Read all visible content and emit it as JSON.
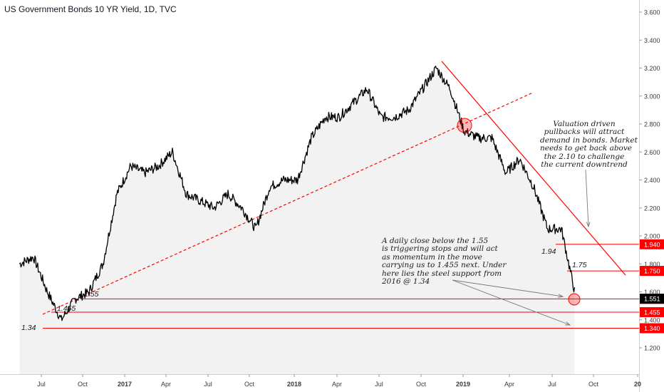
{
  "chart_data": {
    "type": "line",
    "title": "US Government Bonds 10 YR Yield, 1D, TVC",
    "colors": {
      "line": "#000000",
      "trend": "#ff0000",
      "label_bg": "#ff0000",
      "current_bg": "#000000",
      "area": "#f2f2f2"
    },
    "x_ticks": [
      "Jul",
      "Oct",
      "2017",
      "Apr",
      "Jul",
      "Oct",
      "2018",
      "Apr",
      "Jul",
      "Oct",
      "2019",
      "Apr",
      "Jul",
      "Oct",
      "20"
    ],
    "y_ticks": [
      "1.200",
      "1.400",
      "1.600",
      "1.800",
      "2.000",
      "2.200",
      "2.400",
      "2.600",
      "2.800",
      "3.000",
      "3.200",
      "3.400",
      "3.600"
    ],
    "ylim": [
      1.1,
      3.7
    ],
    "grid": false,
    "series": [
      {
        "name": "",
        "x": [
          "2016-04",
          "2016-05",
          "2016-06",
          "2016-07",
          "2016-08",
          "2016-09",
          "2016-10",
          "2016-11",
          "2016-12",
          "2017-01",
          "2017-02",
          "2017-03",
          "2017-04",
          "2017-05",
          "2017-06",
          "2017-07",
          "2017-08",
          "2017-09",
          "2017-10",
          "2017-11",
          "2017-12",
          "2018-01",
          "2018-02",
          "2018-03",
          "2018-04",
          "2018-05",
          "2018-06",
          "2018-07",
          "2018-08",
          "2018-09",
          "2018-10",
          "2018-11",
          "2018-12",
          "2019-01",
          "2019-02",
          "2019-03",
          "2019-04",
          "2019-05",
          "2019-06",
          "2019-07",
          "2019-08"
        ],
        "values": [
          1.8,
          1.85,
          1.6,
          1.4,
          1.55,
          1.6,
          1.8,
          2.3,
          2.5,
          2.45,
          2.5,
          2.6,
          2.3,
          2.25,
          2.2,
          2.3,
          2.2,
          2.05,
          2.35,
          2.4,
          2.4,
          2.7,
          2.85,
          2.85,
          2.95,
          3.05,
          2.85,
          2.85,
          2.9,
          3.05,
          3.2,
          3.05,
          2.75,
          2.7,
          2.7,
          2.45,
          2.55,
          2.35,
          2.05,
          2.05,
          1.58
        ]
      }
    ],
    "horizontal_levels": [
      {
        "value": 1.94,
        "label": "1.940"
      },
      {
        "value": 1.75,
        "label": "1.750"
      },
      {
        "value": 1.55,
        "label": "1.550"
      },
      {
        "value": 1.455,
        "label": "1.455"
      },
      {
        "value": 1.34,
        "label": "1.340"
      }
    ],
    "current_value": "1.551",
    "level_annotations": [
      "1.34",
      "1.455",
      "1.55",
      "1.94",
      "1.75"
    ],
    "annotations": [
      "Valuation driven\npullbacks will attract\ndemand in bonds. Market\nneeds to get back above\nthe 2.10 to challenge\nthe current downtrend",
      "A daily close below the 1.55\nis triggering stops and will act\nas momentum in the move\ncarrying us to 1.455 next. Under\nhere lies the steel support from\n2016 @ 1.34"
    ]
  }
}
